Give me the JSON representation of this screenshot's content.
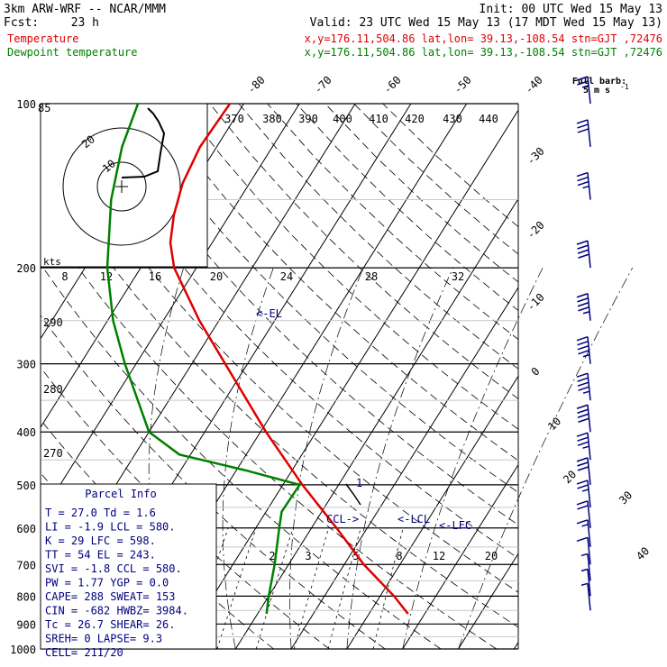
{
  "header": {
    "model": "3km ARW-WRF -- NCAR/MMM",
    "init": "Init: 00 UTC Wed 15 May 13",
    "fcst_label": "Fcst:",
    "fcst_value": "23 h",
    "valid": "Valid: 23 UTC Wed 15 May 13 (17 MDT Wed 15 May 13)"
  },
  "legend": [
    {
      "name": "Temperature",
      "info": "x,y=176.11,504.86   lat,lon= 39.13,-108.54   stn=GJT ,72476",
      "color": "#e00000"
    },
    {
      "name": "Dewpoint temperature",
      "info": "x,y=176.11,504.86   lat,lon= 39.13,-108.54   stn=GJT ,72476",
      "color": "#008000"
    }
  ],
  "full_barb_label": "Full barb:",
  "full_barb_value": "5 m s",
  "hodograph": {
    "units_label": "kts",
    "ring_labels": [
      "20",
      "10"
    ],
    "height_labels": [
      "12",
      "16",
      "20",
      "24",
      "28",
      "32"
    ],
    "first_label": "8"
  },
  "chart_data": {
    "type": "skew-t log-p",
    "pressure_levels": [
      100,
      200,
      300,
      400,
      500,
      600,
      700,
      800,
      900,
      1000
    ],
    "temperature_labels": [
      "-80",
      "-70",
      "-60",
      "-50",
      "-40",
      "-30",
      "-20",
      "-10",
      "0",
      "10",
      "20",
      "30",
      "40"
    ],
    "theta_labels_top": [
      "370",
      "380",
      "390",
      "400",
      "410",
      "420",
      "430",
      "440"
    ],
    "theta_labels_left": [
      "290",
      "280",
      "270"
    ],
    "mixing_ratio_labels": [
      "2",
      "3",
      "5",
      "8",
      "12",
      "20"
    ],
    "temperature": [
      {
        "p": 862,
        "t": 27.0
      },
      {
        "p": 800,
        "t": 22.5
      },
      {
        "p": 700,
        "t": 13.5
      },
      {
        "p": 600,
        "t": 4.5
      },
      {
        "p": 500,
        "t": -6.5
      },
      {
        "p": 400,
        "t": -19.0
      },
      {
        "p": 300,
        "t": -34.0
      },
      {
        "p": 250,
        "t": -43.5
      },
      {
        "p": 200,
        "t": -54.0
      },
      {
        "p": 180,
        "t": -57.5
      },
      {
        "p": 160,
        "t": -60.0
      },
      {
        "p": 140,
        "t": -62.0
      },
      {
        "p": 120,
        "t": -63.0
      },
      {
        "p": 100,
        "t": -62.5
      }
    ],
    "dewpoint": [
      {
        "p": 862,
        "t": 1.6
      },
      {
        "p": 800,
        "t": 0.0
      },
      {
        "p": 700,
        "t": -2.5
      },
      {
        "p": 600,
        "t": -5.8
      },
      {
        "p": 560,
        "t": -7.2
      },
      {
        "p": 500,
        "t": -7.0
      },
      {
        "p": 470,
        "t": -18.5
      },
      {
        "p": 440,
        "t": -32.0
      },
      {
        "p": 400,
        "t": -40.0
      },
      {
        "p": 300,
        "t": -52.0
      },
      {
        "p": 250,
        "t": -59.0
      },
      {
        "p": 200,
        "t": -66.0
      },
      {
        "p": 150,
        "t": -73.0
      },
      {
        "p": 120,
        "t": -77.0
      },
      {
        "p": 100,
        "t": -79.0
      }
    ],
    "levels_marked": {
      "EL": 243,
      "CCL": 580,
      "LCL": 580,
      "LFC": 598
    },
    "wind_barbs": [
      {
        "p": 850,
        "kts": 5
      },
      {
        "p": 800,
        "kts": 5
      },
      {
        "p": 750,
        "kts": 5
      },
      {
        "p": 700,
        "kts": 10
      },
      {
        "p": 650,
        "kts": 15
      },
      {
        "p": 600,
        "kts": 20
      },
      {
        "p": 550,
        "kts": 25
      },
      {
        "p": 500,
        "kts": 30
      },
      {
        "p": 450,
        "kts": 35
      },
      {
        "p": 400,
        "kts": 40
      },
      {
        "p": 350,
        "kts": 45
      },
      {
        "p": 300,
        "kts": 45
      },
      {
        "p": 250,
        "kts": 45
      },
      {
        "p": 200,
        "kts": 40
      },
      {
        "p": 150,
        "kts": 35
      },
      {
        "p": 120,
        "kts": 30
      },
      {
        "p": 100,
        "kts": 25
      }
    ]
  },
  "level_marks": {
    "el": "<-EL",
    "ccl": "CCL->",
    "lcl": "<-LCL",
    "lfc": "<-LFC",
    "parcel_top": "1"
  },
  "parcel_info": {
    "title": "Parcel Info",
    "rows": [
      [
        "T   =  27.0 Td =   1.6",
        "LI  =  -1.9 LCL =  580.",
        "K   =    29 LFC =  598.",
        "TT  =    54 EL  =  243.",
        "SVI =  -1.8 CCL =  580.",
        "PW  =  1.77 YGP =   0.0",
        "CAPE=   288 SWEAT=  153",
        "CIN =  -682 HWBZ= 3984.",
        "Tc  =  26.7 SHEAR=  26.",
        "SREH=     0 LAPSE=  9.3",
        "CELL= 211/20"
      ]
    ]
  }
}
